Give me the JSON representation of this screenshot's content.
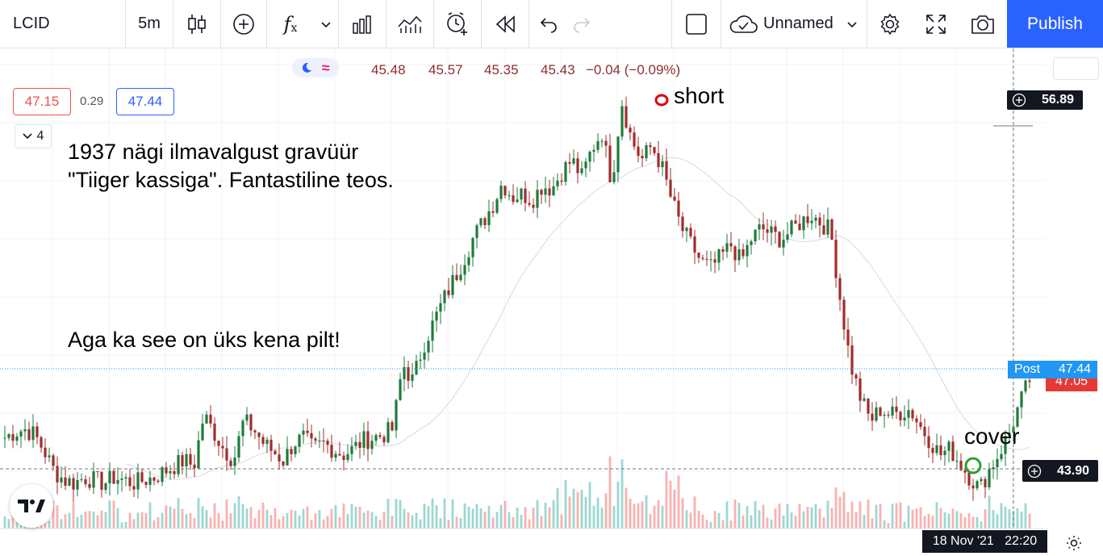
{
  "toolbar": {
    "symbol": "LCID",
    "interval": "5m",
    "layout_name": "Unnamed",
    "publish_label": "Publish",
    "icons": [
      "candles-icon",
      "add-indicator-icon",
      "fx-icon",
      "chevron-down-icon",
      "bars-icon",
      "templates-icon",
      "alert-icon",
      "replay-icon",
      "undo-icon",
      "redo-icon",
      "square-icon",
      "cloud-icon",
      "gear-icon",
      "fullscreen-icon",
      "camera-icon"
    ]
  },
  "legend": {
    "open": "45.48",
    "high": "45.57",
    "low": "45.35",
    "close": "45.43",
    "change": "−0.04 (−0.09%)"
  },
  "quote": {
    "sell": "47.15",
    "spread": "0.29",
    "buy": "47.44",
    "indicators_count": "4"
  },
  "annotations": {
    "text1_line1": "1937 nägi ilmavalgust gravüür",
    "text1_line2": "\"Tiiger kassiga\". Fantastiline teos.",
    "text2": "Aga ka see on üks kena pilt!",
    "short": "short",
    "cover": "cover"
  },
  "price_labels": {
    "top_cross": "56.89",
    "post_tag": "Post",
    "post_price": "47.44",
    "last_price": "47.05",
    "cross_bottom": "43.90"
  },
  "time_label": "18 Nov '21   22:20",
  "colors": {
    "up": "#26a69a",
    "down": "#ef5350",
    "up_candle": "#1e7b3b",
    "down_candle": "#a12c2c",
    "accent": "#2962ff",
    "short_marker": "#e0000b",
    "cover_marker": "#2ca02c"
  },
  "chart_data": {
    "type": "candlestick",
    "symbol": "LCID",
    "interval": "5m",
    "price_axis_visible_labels": [
      56.89,
      47.44,
      47.05,
      43.9
    ],
    "x_label_visible": "18 Nov '21 22:20",
    "close_path": [
      45.0,
      45.2,
      45.3,
      45.1,
      44.5,
      43.8,
      43.5,
      43.4,
      43.6,
      43.5,
      43.4,
      43.6,
      43.5,
      43.4,
      43.5,
      43.6,
      43.8,
      44.0,
      44.2,
      44.0,
      45.8,
      45.2,
      44.6,
      44.2,
      45.6,
      45.3,
      44.8,
      44.5,
      44.2,
      44.8,
      45.0,
      44.6,
      44.8,
      44.6,
      44.4,
      44.6,
      44.9,
      45.0,
      45.1,
      45.3,
      47.6,
      47.0,
      48.2,
      49.0,
      49.8,
      50.5,
      51.2,
      52.0,
      52.6,
      53.2,
      54.0,
      53.5,
      53.6,
      53.4,
      53.9,
      53.8,
      54.4,
      54.8,
      54.2,
      55.2,
      55.8,
      54.0,
      56.9,
      55.5,
      54.8,
      55.3,
      54.6,
      53.4,
      52.4,
      51.8,
      51.2,
      51.0,
      51.4,
      51.8,
      51.2,
      52.0,
      52.4,
      52.2,
      52.0,
      52.3,
      52.6,
      52.9,
      52.6,
      52.3,
      49.8,
      47.6,
      46.4,
      45.6,
      46.0,
      45.8,
      45.9,
      46.0,
      45.4,
      44.9,
      44.4,
      44.6,
      44.1,
      43.6,
      43.2,
      43.9,
      44.5,
      45.2,
      46.2,
      47.05
    ],
    "volume": "bars below price; highest near the 56.89 peak and the 47.6 open gap"
  }
}
